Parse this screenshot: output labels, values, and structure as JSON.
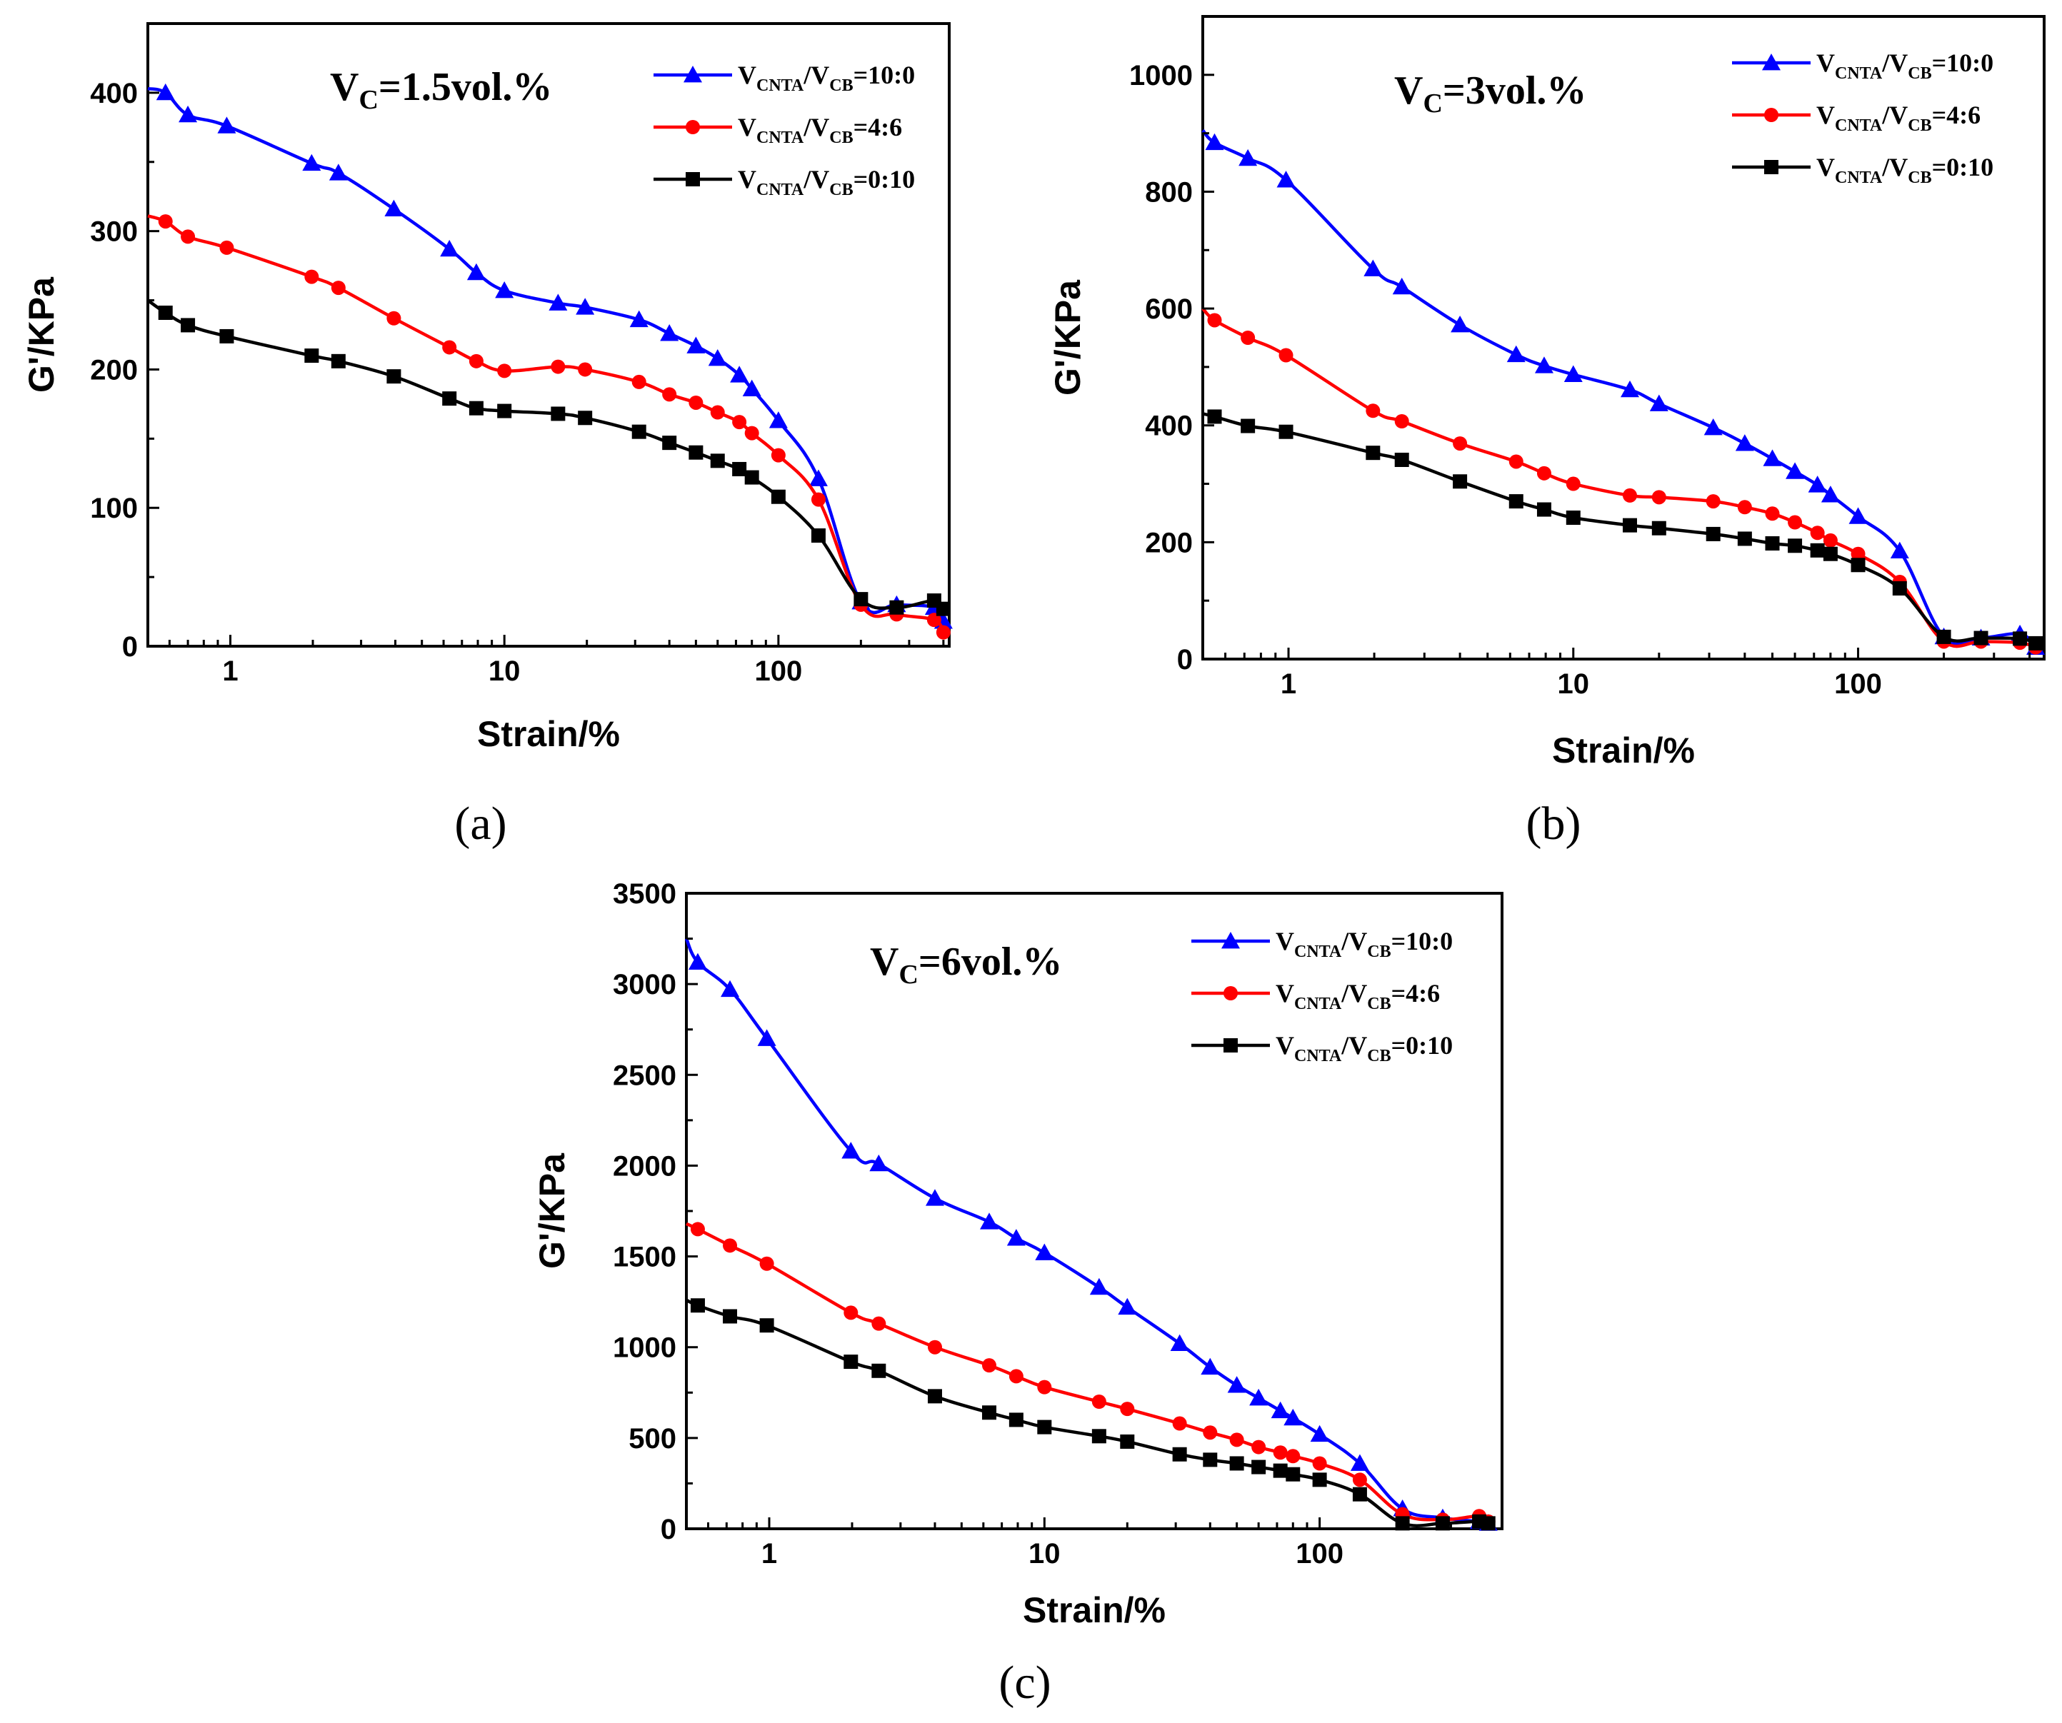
{
  "chart_data": [
    {
      "type": "line",
      "panel_label": "(a)",
      "title": {
        "main": "V",
        "sub": "C",
        "rest": "=1.5vol.%"
      },
      "xlabel": "Strain/%",
      "ylabel": "G'/KPa",
      "xscale": "log",
      "xlim": [
        0.5,
        420
      ],
      "ylim": [
        0,
        450
      ],
      "xticks": [
        1,
        10,
        100
      ],
      "xtick_labels": [
        "1",
        "10",
        "100"
      ],
      "yticks": [
        0,
        100,
        200,
        300,
        400
      ],
      "ytick_labels": [
        "0",
        "100",
        "200",
        "300",
        "400"
      ],
      "legend_position": "top-right",
      "x": [
        0.5,
        0.58,
        0.7,
        0.97,
        1.98,
        2.48,
        3.95,
        6.3,
        7.9,
        10,
        15.7,
        19.7,
        31,
        40,
        50,
        60,
        72,
        80,
        100,
        140,
        200,
        270,
        370,
        400
      ],
      "series": [
        {
          "name": "10:0",
          "legend": {
            "v1": "V",
            "s1": "CNTA",
            "v2": "/V",
            "s2": "CB",
            "ratio": "=10:0"
          },
          "color": "#0000ff",
          "marker": "triangle",
          "values": [
            403,
            400,
            384,
            376,
            349,
            342,
            316,
            287,
            270,
            257,
            248,
            245,
            236,
            226,
            217,
            208,
            196,
            186,
            163,
            121,
            32,
            30,
            28,
            18
          ]
        },
        {
          "name": "4:6",
          "legend": {
            "v1": "V",
            "s1": "CNTA",
            "v2": "/V",
            "s2": "CB",
            "ratio": "=4:6"
          },
          "color": "#ff0000",
          "marker": "circle",
          "values": [
            311,
            307,
            296,
            288,
            267,
            259,
            237,
            216,
            206,
            199,
            202,
            200,
            191,
            182,
            176,
            169,
            162,
            154,
            138,
            106,
            30,
            23,
            19,
            10
          ]
        },
        {
          "name": "0:10",
          "legend": {
            "v1": "V",
            "s1": "CNTA",
            "v2": "/V",
            "s2": "CB",
            "ratio": "=0:10"
          },
          "color": "#000000",
          "marker": "square",
          "values": [
            250,
            241,
            232,
            224,
            210,
            206,
            195,
            179,
            172,
            170,
            168,
            165,
            155,
            147,
            140,
            134,
            128,
            122,
            108,
            80,
            34,
            28,
            33,
            27
          ]
        }
      ]
    },
    {
      "type": "line",
      "panel_label": "(b)",
      "title": {
        "main": "V",
        "sub": "C",
        "rest": "=3vol.%"
      },
      "xlabel": "Strain/%",
      "ylabel": "G'/KPa",
      "xscale": "log",
      "xlim": [
        0.5,
        450
      ],
      "ylim": [
        0,
        1100
      ],
      "xticks": [
        1,
        10,
        100
      ],
      "xtick_labels": [
        "1",
        "10",
        "100"
      ],
      "yticks": [
        0,
        200,
        400,
        600,
        800,
        1000
      ],
      "ytick_labels": [
        "0",
        "200",
        "400",
        "600",
        "800",
        "1000"
      ],
      "legend_position": "top-right",
      "x": [
        0.5,
        0.55,
        0.72,
        0.98,
        1.98,
        2.5,
        4,
        6.3,
        7.9,
        10,
        15.8,
        20,
        31,
        40,
        50,
        60,
        72,
        80,
        100,
        140,
        200,
        270,
        370,
        420
      ],
      "series": [
        {
          "name": "10:0",
          "legend": {
            "v1": "V",
            "s1": "CNTA",
            "v2": "/V",
            "s2": "CB",
            "ratio": "=10:0"
          },
          "color": "#0000ff",
          "marker": "triangle",
          "values": [
            905,
            884,
            857,
            820,
            668,
            637,
            572,
            521,
            502,
            487,
            461,
            437,
            396,
            369,
            343,
            321,
            298,
            281,
            244,
            185,
            38,
            36,
            43,
            20
          ]
        },
        {
          "name": "4:6",
          "legend": {
            "v1": "V",
            "s1": "CNTA",
            "v2": "/V",
            "s2": "CB",
            "ratio": "=4:6"
          },
          "color": "#ff0000",
          "marker": "circle",
          "values": [
            600,
            580,
            550,
            520,
            425,
            407,
            369,
            338,
            318,
            300,
            280,
            277,
            270,
            260,
            249,
            234,
            216,
            203,
            180,
            132,
            30,
            30,
            28,
            20
          ]
        },
        {
          "name": "0:10",
          "legend": {
            "v1": "V",
            "s1": "CNTA",
            "v2": "/V",
            "s2": "CB",
            "ratio": "=0:10"
          },
          "color": "#000000",
          "marker": "square",
          "values": [
            420,
            415,
            399,
            389,
            353,
            341,
            304,
            270,
            256,
            242,
            229,
            224,
            214,
            206,
            198,
            194,
            186,
            180,
            161,
            121,
            38,
            36,
            35,
            27
          ]
        }
      ]
    },
    {
      "type": "line",
      "panel_label": "(c)",
      "title": {
        "main": "V",
        "sub": "C",
        "rest": "=6vol.%"
      },
      "xlabel": "Strain/%",
      "ylabel": "G'/KPa",
      "xscale": "log",
      "xlim": [
        0.5,
        460
      ],
      "ylim": [
        0,
        3500
      ],
      "xticks": [
        1,
        10,
        100
      ],
      "xtick_labels": [
        "1",
        "10",
        "100"
      ],
      "yticks": [
        0,
        500,
        1000,
        1500,
        2000,
        2500,
        3000,
        3500
      ],
      "ytick_labels": [
        "0",
        "500",
        "1000",
        "1500",
        "2000",
        "2500",
        "3000",
        "3500"
      ],
      "legend_position": "top-right",
      "x": [
        0.5,
        0.55,
        0.72,
        0.98,
        1.98,
        2.5,
        4,
        6.3,
        7.9,
        10,
        15.8,
        20,
        31,
        40,
        50,
        60,
        72,
        80,
        100,
        140,
        200,
        280,
        380,
        410
      ],
      "series": [
        {
          "name": "10:0",
          "legend": {
            "v1": "V",
            "s1": "CNTA",
            "v2": "/V",
            "s2": "CB",
            "ratio": "=10:0"
          },
          "color": "#0000ff",
          "marker": "triangle",
          "values": [
            3250,
            3120,
            2970,
            2700,
            2080,
            2010,
            1820,
            1690,
            1600,
            1520,
            1330,
            1220,
            1020,
            890,
            790,
            720,
            650,
            610,
            520,
            360,
            110,
            60,
            40,
            30
          ]
        },
        {
          "name": "4:6",
          "legend": {
            "v1": "V",
            "s1": "CNTA",
            "v2": "/V",
            "s2": "CB",
            "ratio": "=4:6"
          },
          "color": "#ff0000",
          "marker": "circle",
          "values": [
            1680,
            1650,
            1560,
            1460,
            1190,
            1130,
            1000,
            900,
            840,
            780,
            700,
            660,
            580,
            530,
            490,
            450,
            420,
            400,
            360,
            270,
            80,
            50,
            70,
            40
          ]
        },
        {
          "name": "0:10",
          "legend": {
            "v1": "V",
            "s1": "CNTA",
            "v2": "/V",
            "s2": "CB",
            "ratio": "=0:10"
          },
          "color": "#000000",
          "marker": "square",
          "values": [
            1260,
            1230,
            1170,
            1120,
            920,
            870,
            730,
            640,
            600,
            560,
            510,
            480,
            410,
            380,
            360,
            340,
            320,
            300,
            270,
            190,
            30,
            30,
            40,
            30
          ]
        }
      ]
    }
  ]
}
